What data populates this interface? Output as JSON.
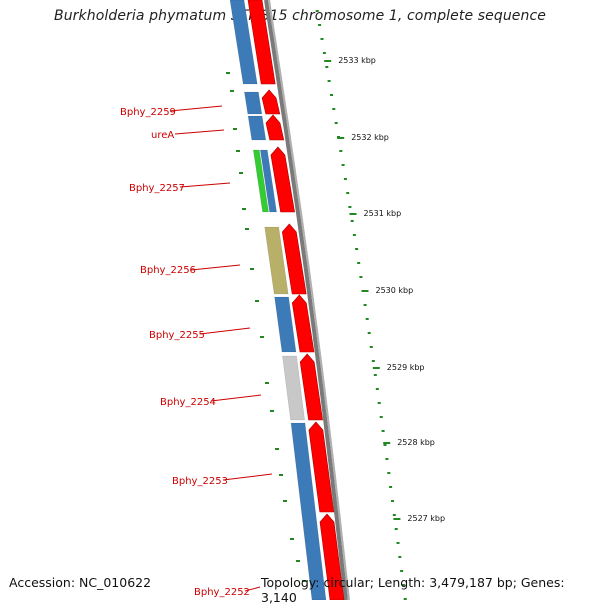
{
  "title": "Burkholderia phymatum STM815 chromosome 1, complete sequence",
  "footer": {
    "accession": "Accession: NC_010622",
    "topology": "Topology: circular; Length: 3,479,187 bp; Genes: 3,140"
  },
  "colors": {
    "cds_forward": "#ff0000",
    "cds_reverse_blue": "#3d7ab8",
    "cds_reverse_green": "#33cc33",
    "cds_reverse_khaki": "#b8b068",
    "cds_reverse_gray": "#c8c8c8",
    "backbone": "#7a7a7a",
    "gc_ticks": "#228822",
    "gene_label": "#cc0000"
  },
  "scale_ticks": [
    {
      "label": "2533 kbp"
    },
    {
      "label": "2532 kbp"
    },
    {
      "label": "2531 kbp"
    },
    {
      "label": "2530 kbp"
    },
    {
      "label": "2529 kbp"
    },
    {
      "label": "2528 kbp"
    },
    {
      "label": "2527 kbp"
    }
  ],
  "gene_labels": [
    {
      "label": "Bphy_2259"
    },
    {
      "label": "ureA"
    },
    {
      "label": "Bphy_2257"
    },
    {
      "label": "Bphy_2256"
    },
    {
      "label": "Bphy_2255"
    },
    {
      "label": "Bphy_2254"
    },
    {
      "label": "Bphy_2253"
    },
    {
      "label": "Bphy_2252"
    }
  ]
}
